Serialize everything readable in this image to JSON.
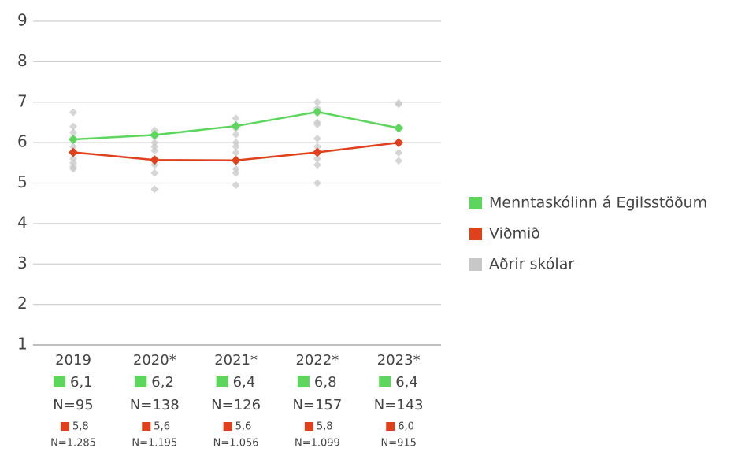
{
  "chart_data": {
    "type": "line",
    "categories": [
      "2019",
      "2020*",
      "2021*",
      "2022*",
      "2023*"
    ],
    "ylim": [
      1,
      9
    ],
    "yticks": [
      1,
      2,
      3,
      4,
      5,
      6,
      7,
      8,
      9
    ],
    "grid": true,
    "legend": "right",
    "series": [
      {
        "name": "Menntaskólinn á Egilsstöðum",
        "color": "#5cd65c",
        "values": [
          6.08,
          6.19,
          6.41,
          6.76,
          6.36
        ],
        "value_labels": [
          "6,1",
          "6,2",
          "6,4",
          "6,8",
          "6,4"
        ],
        "n_labels": [
          "N=95",
          "N=138",
          "N=126",
          "N=157",
          "N=143"
        ]
      },
      {
        "name": "Viðmið",
        "color": "#e0401b",
        "values": [
          5.76,
          5.57,
          5.56,
          5.76,
          6.0
        ],
        "value_labels": [
          "5,8",
          "5,6",
          "5,6",
          "5,8",
          "6,0"
        ],
        "n_labels": [
          "N=1.285",
          "N=1.195",
          "N=1.056",
          "N=1.099",
          "N=915"
        ]
      },
      {
        "name": "Aðrir skólar",
        "color": "#c8c8c8",
        "values": [
          [
            6.75,
            6.4,
            6.25,
            6.1,
            5.9,
            5.75,
            5.6,
            5.5,
            5.4,
            5.35
          ],
          [
            6.3,
            6.15,
            6.0,
            5.9,
            5.8,
            5.6,
            5.45,
            5.25,
            4.85
          ],
          [
            6.6,
            6.35,
            6.2,
            6.0,
            5.9,
            5.75,
            5.55,
            5.35,
            5.25,
            4.95
          ],
          [
            7.0,
            6.85,
            6.5,
            6.45,
            6.1,
            5.9,
            5.6,
            5.45,
            5.0
          ],
          [
            6.98,
            6.95,
            6.35,
            6.0,
            5.75,
            5.55
          ]
        ]
      }
    ]
  }
}
